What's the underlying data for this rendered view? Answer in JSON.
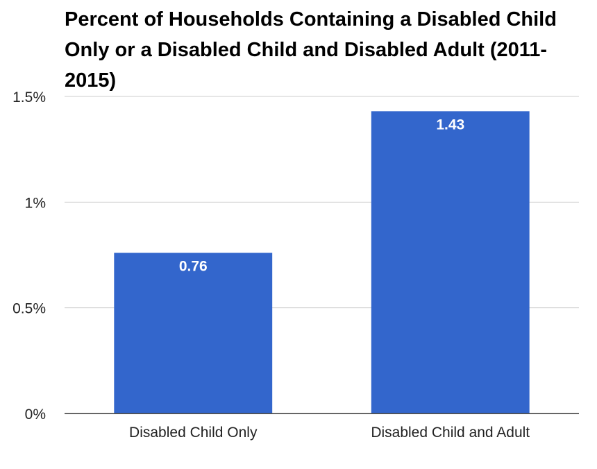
{
  "chart_data": {
    "type": "bar",
    "title": "Percent of Households Containing a Disabled Child Only or a Disabled Child and Disabled Adult (2011-2015)",
    "xlabel": "",
    "ylabel": "",
    "categories": [
      "Disabled Child Only",
      "Disabled Child and Adult"
    ],
    "values": [
      0.76,
      1.43
    ],
    "data_labels": [
      "0.76",
      "1.43"
    ],
    "ylim": [
      0,
      1.5
    ],
    "y_ticks": [
      {
        "value": 0,
        "label": "0%"
      },
      {
        "value": 0.5,
        "label": "0.5%"
      },
      {
        "value": 1,
        "label": "1%"
      },
      {
        "value": 1.5,
        "label": "1.5%"
      }
    ],
    "bar_color": "#3366cc",
    "gridlines": true,
    "legend": "none"
  }
}
